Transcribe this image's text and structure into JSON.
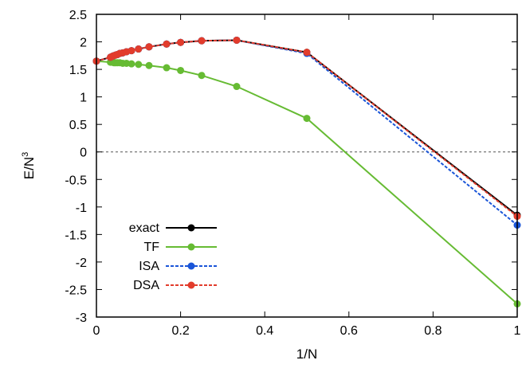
{
  "chart_data": {
    "type": "line",
    "title": "",
    "xlabel": "1/N",
    "ylabel": "E/N",
    "ylabel_superscript": "3",
    "xlim": [
      0,
      1
    ],
    "ylim": [
      -3,
      2.5
    ],
    "xticks": [
      "0",
      "0.2",
      "0.4",
      "0.6",
      "0.8",
      "1"
    ],
    "xtick_values": [
      0,
      0.2,
      0.4,
      0.6,
      0.8,
      1
    ],
    "yticks": [
      "2.5",
      "2",
      "1.5",
      "1",
      "0.5",
      "0",
      "-0.5",
      "-1",
      "-1.5",
      "-2",
      "-2.5",
      "-3"
    ],
    "ytick_values": [
      2.5,
      2,
      1.5,
      1,
      0.5,
      0,
      -0.5,
      -1,
      -1.5,
      -2,
      -2.5,
      -3
    ],
    "grid": false,
    "zero_line": true,
    "legend_position": "bottom-left",
    "series": [
      {
        "name": "exact",
        "color": "#000000",
        "dash": "solid",
        "x": [
          0.0,
          0.0333,
          0.0357,
          0.0385,
          0.0417,
          0.0455,
          0.05,
          0.0556,
          0.0625,
          0.0714,
          0.0833,
          0.1,
          0.125,
          0.1667,
          0.2,
          0.25,
          0.3333,
          0.5,
          1.0
        ],
        "y": [
          1.65,
          1.72,
          1.73,
          1.74,
          1.75,
          1.76,
          1.77,
          1.79,
          1.8,
          1.82,
          1.84,
          1.87,
          1.91,
          1.96,
          1.99,
          2.02,
          2.03,
          1.81,
          -1.15
        ]
      },
      {
        "name": "TF",
        "color": "#66bb33",
        "dash": "solid",
        "x": [
          0.0,
          0.0333,
          0.0357,
          0.0385,
          0.0417,
          0.0455,
          0.05,
          0.0556,
          0.0625,
          0.0714,
          0.0833,
          0.1,
          0.125,
          0.1667,
          0.2,
          0.25,
          0.3333,
          0.5,
          1.0
        ],
        "y": [
          1.65,
          1.63,
          1.63,
          1.63,
          1.62,
          1.62,
          1.62,
          1.62,
          1.61,
          1.61,
          1.6,
          1.59,
          1.57,
          1.53,
          1.48,
          1.39,
          1.19,
          0.61,
          -2.76
        ]
      },
      {
        "name": "ISA",
        "color": "#1a55d8",
        "dash": "dashed",
        "x": [
          0.0,
          0.0333,
          0.0357,
          0.0385,
          0.0417,
          0.0455,
          0.05,
          0.0556,
          0.0625,
          0.0714,
          0.0833,
          0.1,
          0.125,
          0.1667,
          0.2,
          0.25,
          0.3333,
          0.5,
          1.0
        ],
        "y": [
          1.65,
          1.72,
          1.73,
          1.74,
          1.75,
          1.76,
          1.77,
          1.79,
          1.8,
          1.82,
          1.84,
          1.87,
          1.91,
          1.96,
          1.99,
          2.02,
          2.03,
          1.79,
          -1.33
        ]
      },
      {
        "name": "DSA",
        "color": "#e23c2c",
        "dash": "dashed",
        "x": [
          0.0,
          0.0333,
          0.0357,
          0.0385,
          0.0417,
          0.0455,
          0.05,
          0.0556,
          0.0625,
          0.0714,
          0.0833,
          0.1,
          0.125,
          0.1667,
          0.2,
          0.25,
          0.3333,
          0.5,
          1.0
        ],
        "y": [
          1.65,
          1.72,
          1.73,
          1.74,
          1.75,
          1.76,
          1.77,
          1.79,
          1.8,
          1.82,
          1.84,
          1.87,
          1.91,
          1.96,
          1.99,
          2.02,
          2.03,
          1.81,
          -1.17
        ]
      }
    ]
  }
}
